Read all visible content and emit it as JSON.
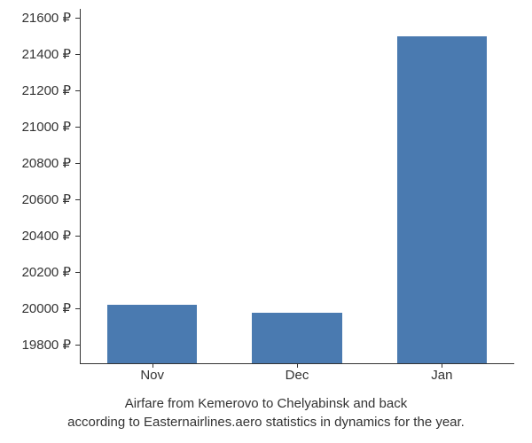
{
  "airfare_chart": {
    "type": "bar",
    "categories": [
      "Nov",
      "Dec",
      "Jan"
    ],
    "values": [
      20020,
      19980,
      21500
    ],
    "bar_color": "#4a7ab0",
    "ymin": 19700,
    "ymax": 21650,
    "ytick_step": 200,
    "yticks": [
      19800,
      20000,
      20200,
      20400,
      20600,
      20800,
      21000,
      21200,
      21400,
      21600
    ],
    "y_suffix": " ₽",
    "label_fontsize": 15,
    "background_color": "#ffffff",
    "axis_color": "#333333",
    "text_color": "#333333",
    "bar_width_ratio": 0.62,
    "caption_line1": "Airfare from Kemerovo to Chelyabinsk and back",
    "caption_line2": "according to Easternairlines.aero statistics in dynamics for the year."
  }
}
